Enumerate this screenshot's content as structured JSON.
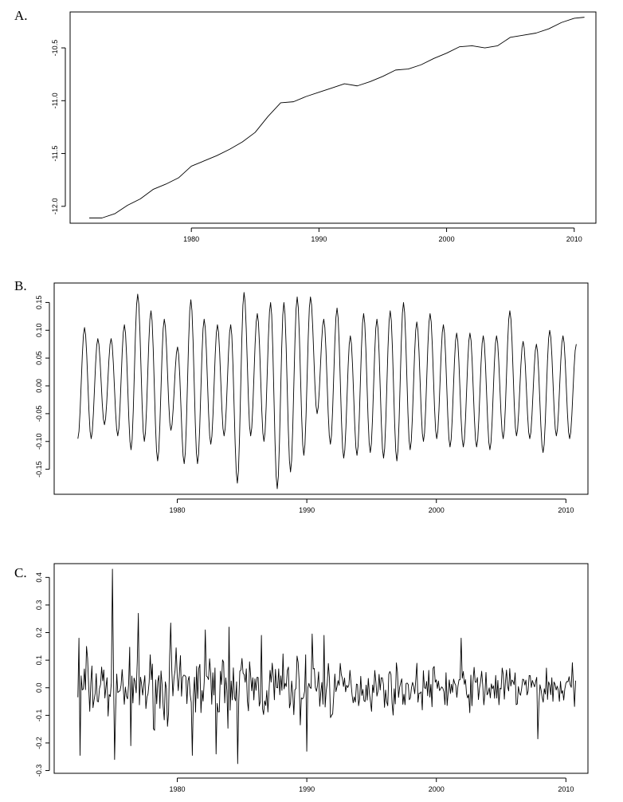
{
  "panels": [
    {
      "letter": "A."
    },
    {
      "letter": "B."
    },
    {
      "letter": "C."
    }
  ],
  "chart_data": [
    {
      "type": "line",
      "title": "",
      "xlabel": "",
      "ylabel": "",
      "xlim": [
        1970.5,
        2011.7
      ],
      "ylim": [
        -12.16,
        -10.16
      ],
      "xticks": [
        1980,
        1990,
        2000,
        2010
      ],
      "yticks": [
        -12.0,
        -11.5,
        -11.0,
        -10.5
      ],
      "xtick_labels": [
        "1980",
        "1990",
        "2000",
        "2010"
      ],
      "ytick_labels": [
        "-12.0",
        "-11.5",
        "-11.0",
        "-10.5"
      ],
      "grid": false,
      "series": [
        {
          "x": [
            1972.0,
            1973.0,
            1974.0,
            1975.0,
            1976.0,
            1977.0,
            1978.0,
            1979.0,
            1980.0,
            1981.0,
            1982.0,
            1983.0,
            1984.0,
            1985.0,
            1986.0,
            1987.0,
            1988.0,
            1989.0,
            1990.0,
            1991.0,
            1992.0,
            1993.0,
            1994.0,
            1995.0,
            1996.0,
            1997.0,
            1998.0,
            1999.0,
            2000.0,
            2001.0,
            2002.0,
            2003.0,
            2004.0,
            2005.0,
            2006.0,
            2007.0,
            2008.0,
            2009.0,
            2010.0,
            2010.8
          ],
          "y": [
            -12.11,
            -12.11,
            -12.07,
            -11.99,
            -11.93,
            -11.84,
            -11.79,
            -11.73,
            -11.62,
            -11.57,
            -11.52,
            -11.46,
            -11.39,
            -11.3,
            -11.15,
            -11.02,
            -11.01,
            -10.96,
            -10.92,
            -10.88,
            -10.84,
            -10.86,
            -10.82,
            -10.77,
            -10.71,
            -10.7,
            -10.66,
            -10.6,
            -10.55,
            -10.49,
            -10.48,
            -10.5,
            -10.48,
            -10.4,
            -10.38,
            -10.36,
            -10.32,
            -10.26,
            -10.22,
            -10.21
          ]
        }
      ]
    },
    {
      "type": "line",
      "title": "",
      "xlabel": "",
      "ylabel": "",
      "xlim": [
        1970.5,
        2011.7
      ],
      "ylim": [
        -0.195,
        0.185
      ],
      "xticks": [
        1980,
        1990,
        2000,
        2010
      ],
      "yticks": [
        -0.15,
        -0.1,
        -0.05,
        0.0,
        0.05,
        0.1,
        0.15
      ],
      "xtick_labels": [
        "1980",
        "1990",
        "2000",
        "2010"
      ],
      "ytick_labels": [
        "-0.15",
        "-0.10",
        "-0.05",
        "0.00",
        "0.05",
        "0.10",
        "0.15"
      ],
      "grid": false,
      "series": [
        {
          "x_start": 1972.33,
          "x_step": 0.0833333,
          "peaks": [
            0.105,
            0.085,
            0.085,
            0.11,
            0.165,
            0.135,
            0.12,
            0.07,
            0.155,
            0.12,
            0.11,
            0.11,
            0.168,
            0.13,
            0.15,
            0.15,
            0.16,
            0.16,
            0.12,
            0.14,
            0.09,
            0.13,
            0.12,
            0.135,
            0.15,
            0.115,
            0.13,
            0.11,
            0.095,
            0.095,
            0.09,
            0.09,
            0.135,
            0.08,
            0.075,
            0.1,
            0.09,
            0.075
          ],
          "troughs": [
            -0.095,
            -0.07,
            -0.09,
            -0.115,
            -0.1,
            -0.135,
            -0.08,
            -0.14,
            -0.14,
            -0.105,
            -0.09,
            -0.175,
            -0.09,
            -0.1,
            -0.185,
            -0.155,
            -0.125,
            -0.05,
            -0.105,
            -0.13,
            -0.125,
            -0.12,
            -0.13,
            -0.135,
            -0.115,
            -0.1,
            -0.095,
            -0.11,
            -0.11,
            -0.11,
            -0.115,
            -0.095,
            -0.09,
            -0.095,
            -0.12,
            -0.09,
            -0.095
          ]
        }
      ]
    },
    {
      "type": "line",
      "title": "",
      "xlabel": "",
      "ylabel": "",
      "xlim": [
        1970.5,
        2011.7
      ],
      "ylim": [
        -0.31,
        0.45
      ],
      "xticks": [
        1980,
        1990,
        2000,
        2010
      ],
      "yticks": [
        -0.3,
        -0.2,
        -0.1,
        0.0,
        0.1,
        0.2,
        0.3,
        0.4
      ],
      "xtick_labels": [
        "1980",
        "1990",
        "2000",
        "2010"
      ],
      "ytick_labels": [
        "-0.3",
        "-0.2",
        "-0.1",
        "0.0",
        "0.1",
        "0.2",
        "0.3",
        "0.4"
      ],
      "grid": false,
      "series": [
        {
          "x_start": 1972.33,
          "x_step": 0.0833333,
          "n": 462,
          "seed": 7,
          "noise_scale_early": 0.085,
          "noise_scale_late": 0.055,
          "noise_break_year": 1992,
          "spikes": [
            {
              "x": 1972.4,
              "y": 0.18
            },
            {
              "x": 1972.5,
              "y": -0.245
            },
            {
              "x": 1973.0,
              "y": 0.15
            },
            {
              "x": 1975.0,
              "y": 0.43
            },
            {
              "x": 1975.2,
              "y": -0.26
            },
            {
              "x": 1976.4,
              "y": -0.21
            },
            {
              "x": 1977.0,
              "y": 0.27
            },
            {
              "x": 1979.5,
              "y": 0.235
            },
            {
              "x": 1981.2,
              "y": -0.245
            },
            {
              "x": 1982.2,
              "y": 0.21
            },
            {
              "x": 1983.0,
              "y": -0.24
            },
            {
              "x": 1984.0,
              "y": 0.22
            },
            {
              "x": 1984.7,
              "y": -0.275
            },
            {
              "x": 1986.5,
              "y": 0.19
            },
            {
              "x": 1990.0,
              "y": -0.23
            },
            {
              "x": 1990.4,
              "y": 0.195
            },
            {
              "x": 1991.3,
              "y": 0.19
            },
            {
              "x": 2001.9,
              "y": 0.18
            },
            {
              "x": 2007.8,
              "y": -0.185
            }
          ]
        }
      ]
    }
  ]
}
